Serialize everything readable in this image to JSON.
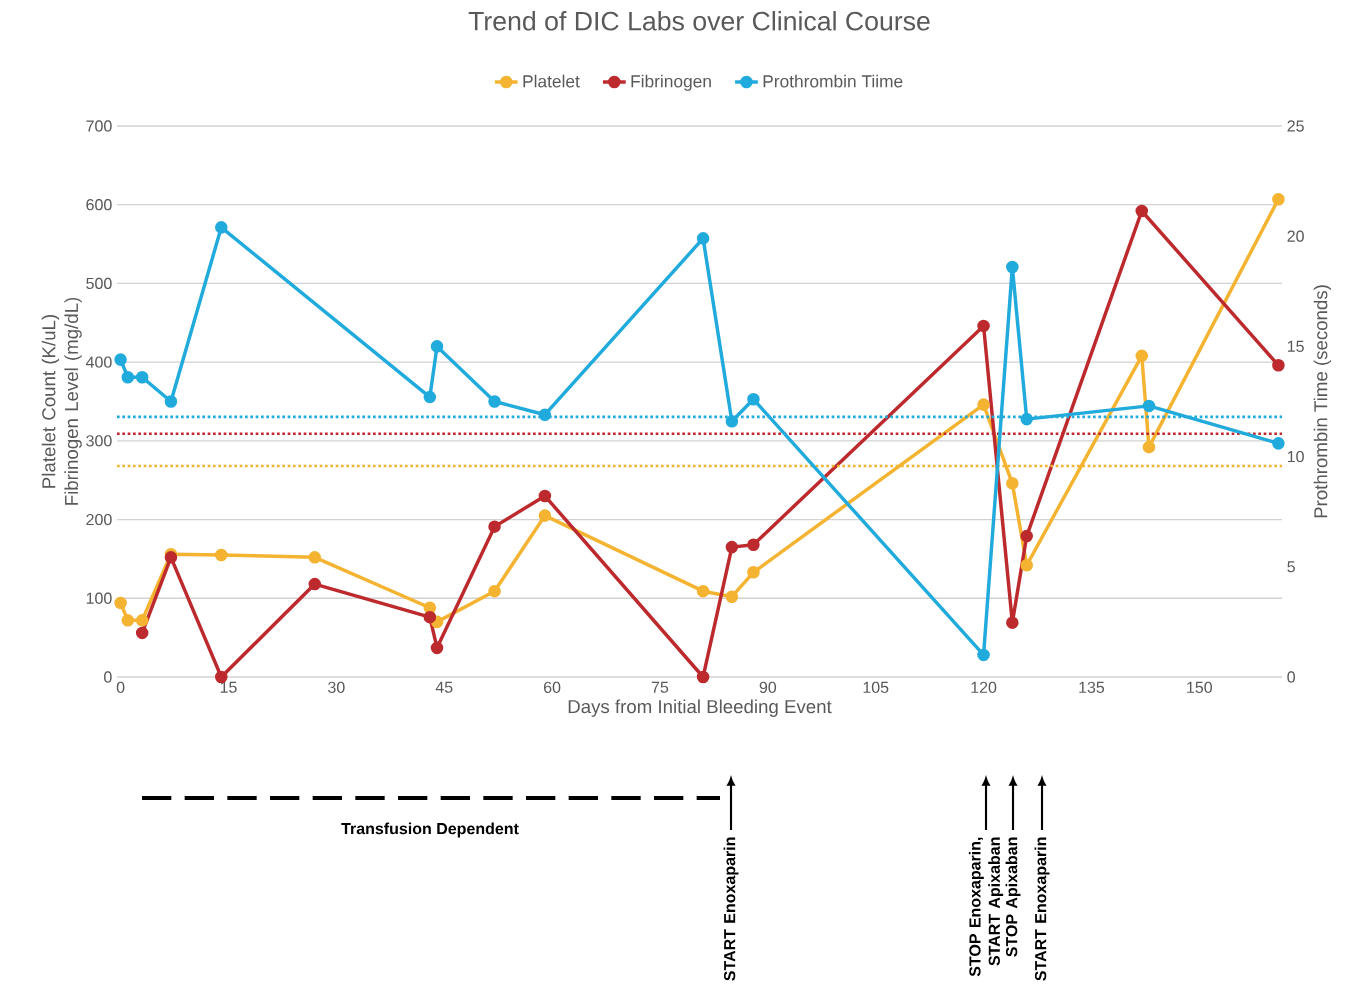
{
  "chart_data": {
    "type": "line",
    "title": "Trend of DIC Labs over Clinical Course",
    "xlabel": "Days from Initial Bleeding Event",
    "ylabel": "Platelet Count (K/uL) Fibrinogen Level (mg/dL)",
    "y2label": "Prothrombin Time (seconds)",
    "xlim": [
      -0.5,
      161.5
    ],
    "xticks": [
      0,
      15,
      30,
      45,
      60,
      75,
      90,
      105,
      120,
      135,
      150
    ],
    "ylim": [
      0,
      700
    ],
    "yticks": [
      0,
      100,
      200,
      300,
      400,
      500,
      600,
      700
    ],
    "y2lim": [
      0,
      25
    ],
    "y2ticks": [
      0,
      5,
      10,
      15,
      20,
      25
    ],
    "grid": "y",
    "legend": "top",
    "marker": "circle",
    "line_style": "solid",
    "series": [
      {
        "name": "Platelet",
        "color": "#f4b331",
        "x": [
          0,
          1,
          3,
          7,
          14,
          27,
          43,
          44,
          52,
          59,
          81,
          85,
          88,
          120,
          124,
          126,
          142,
          143,
          161
        ],
        "values": [
          94,
          72,
          72,
          156,
          155,
          152,
          88,
          70,
          109,
          205,
          109,
          102,
          133,
          346,
          246,
          142,
          408,
          292,
          607
        ]
      },
      {
        "name": "Fibrinogen",
        "color": "#bd2a2e",
        "x": [
          3,
          7,
          14,
          27,
          43,
          44,
          52,
          59,
          81,
          85,
          88,
          120,
          124,
          126,
          142,
          161
        ],
        "values": [
          56,
          152,
          0,
          118,
          76,
          37,
          191,
          230,
          0,
          165,
          168,
          446,
          69,
          179,
          592,
          396
        ]
      },
      {
        "name": "Prothrombin Tiime",
        "color": "#21aadc",
        "axis": "y2",
        "x": [
          0,
          1,
          3,
          7,
          14,
          43,
          44,
          52,
          59,
          81,
          85,
          88,
          120,
          124,
          126,
          143,
          161
        ],
        "values": [
          14.4,
          13.6,
          13.6,
          12.5,
          20.4,
          12.7,
          15.0,
          12.5,
          11.9,
          19.9,
          11.6,
          12.6,
          1.0,
          18.6,
          11.7,
          12.3,
          10.6
        ]
      }
    ],
    "ref_lines": [
      {
        "axis": "y2",
        "value": 11.8,
        "color": "#21aadc",
        "line_style": "dotted"
      },
      {
        "axis": "y",
        "value": 309,
        "color": "#bd2a2e",
        "line_style": "dotted"
      },
      {
        "axis": "y",
        "value": 268,
        "color": "#f4b331",
        "line_style": "dotted"
      }
    ],
    "annotations": [
      "Transfusion Dependent",
      "START Enoxaparin",
      "STOP Enoxaparin, START Apixaban",
      "STOP Apixaban",
      "START Enoxaparin"
    ]
  }
}
